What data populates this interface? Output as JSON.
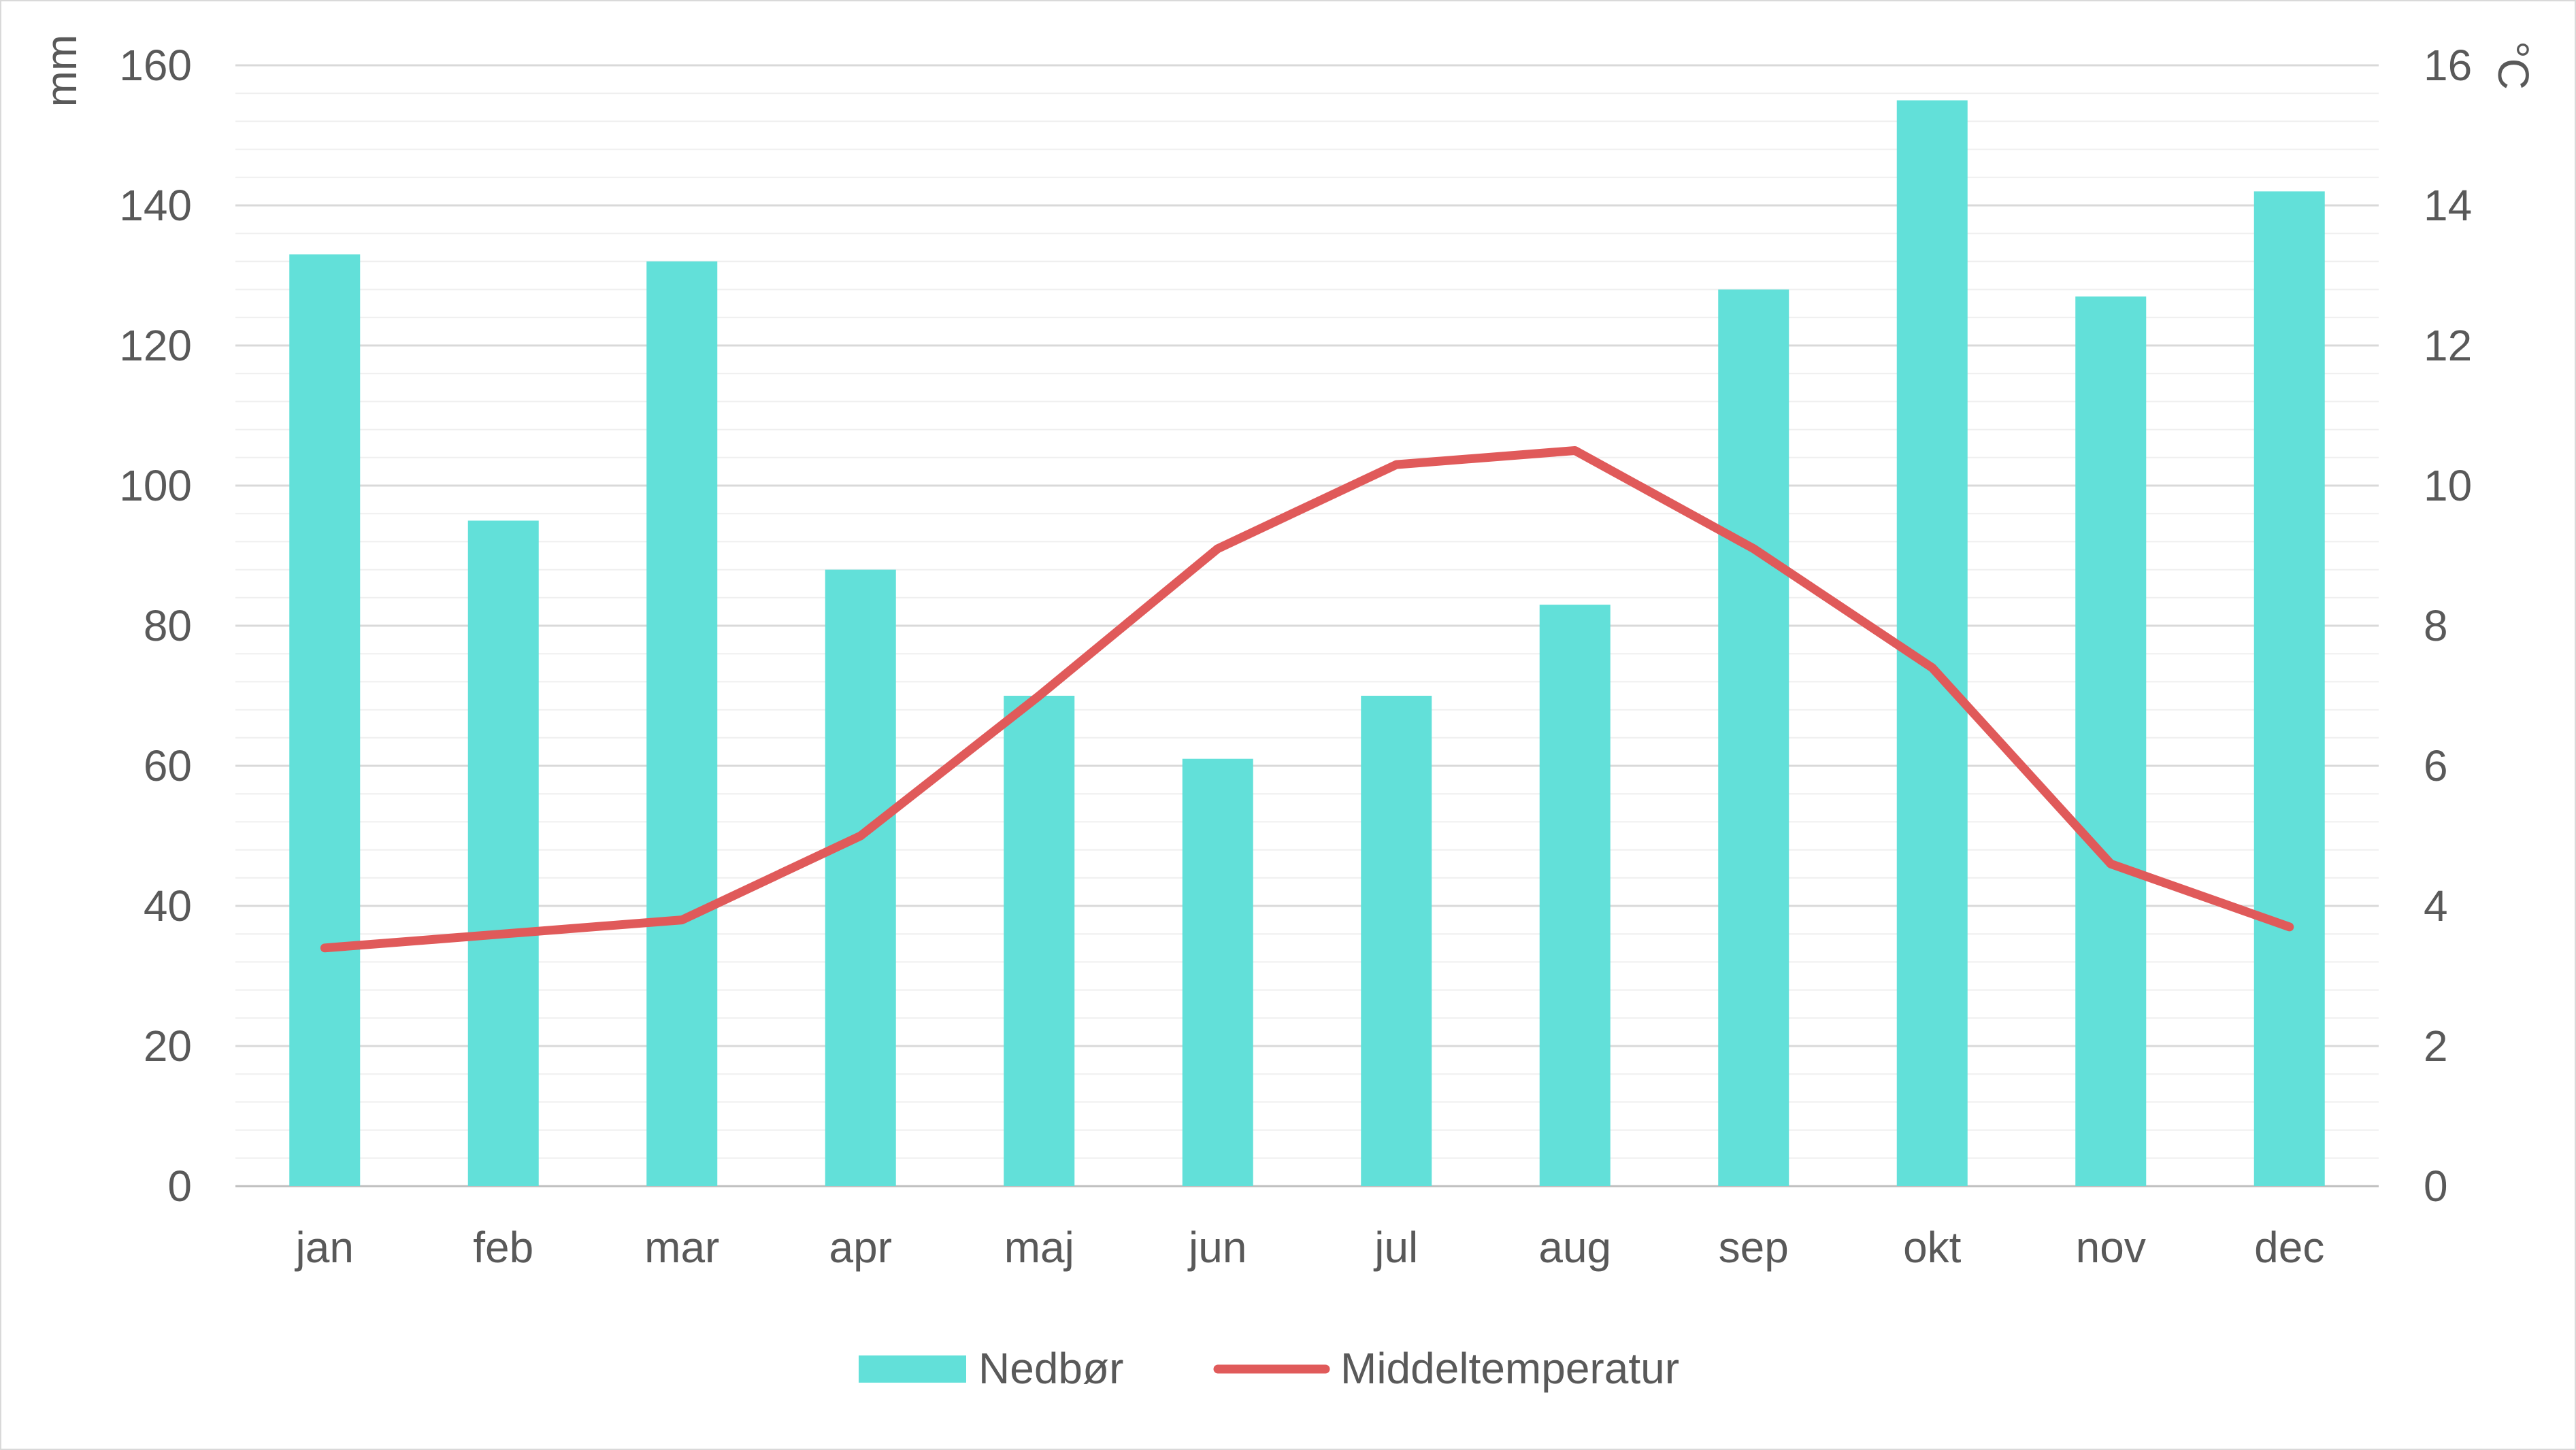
{
  "chart_data": {
    "type": "bar+line",
    "categories": [
      "jan",
      "feb",
      "mar",
      "apr",
      "maj",
      "jun",
      "jul",
      "aug",
      "sep",
      "okt",
      "nov",
      "dec"
    ],
    "series": [
      {
        "name": "Nedbør",
        "type": "bar",
        "axis": "left",
        "color": "#62e0d9",
        "values": [
          133,
          95,
          132,
          88,
          70,
          61,
          70,
          83,
          128,
          155,
          127,
          142
        ]
      },
      {
        "name": "Middeltemperatur",
        "type": "line",
        "axis": "right",
        "color": "#e05a5a",
        "values": [
          3.4,
          3.6,
          3.8,
          5.0,
          7.0,
          9.1,
          10.3,
          10.5,
          9.1,
          7.4,
          4.6,
          3.7
        ]
      }
    ],
    "y_left": {
      "unit": "mm",
      "ylim": [
        0,
        160
      ],
      "ticks": [
        "0",
        "20",
        "40",
        "60",
        "80",
        "100",
        "120",
        "140",
        "160"
      ],
      "tick_values": [
        0,
        20,
        40,
        60,
        80,
        100,
        120,
        140,
        160
      ],
      "minor_step": 4
    },
    "y_right": {
      "unit": "°C",
      "ylim": [
        0,
        16
      ],
      "ticks": [
        "0",
        "2",
        "4",
        "6",
        "8",
        "10",
        "12",
        "14",
        "16"
      ],
      "tick_values": [
        0,
        2,
        4,
        6,
        8,
        10,
        12,
        14,
        16
      ]
    },
    "grid": true,
    "legend_position": "bottom"
  }
}
